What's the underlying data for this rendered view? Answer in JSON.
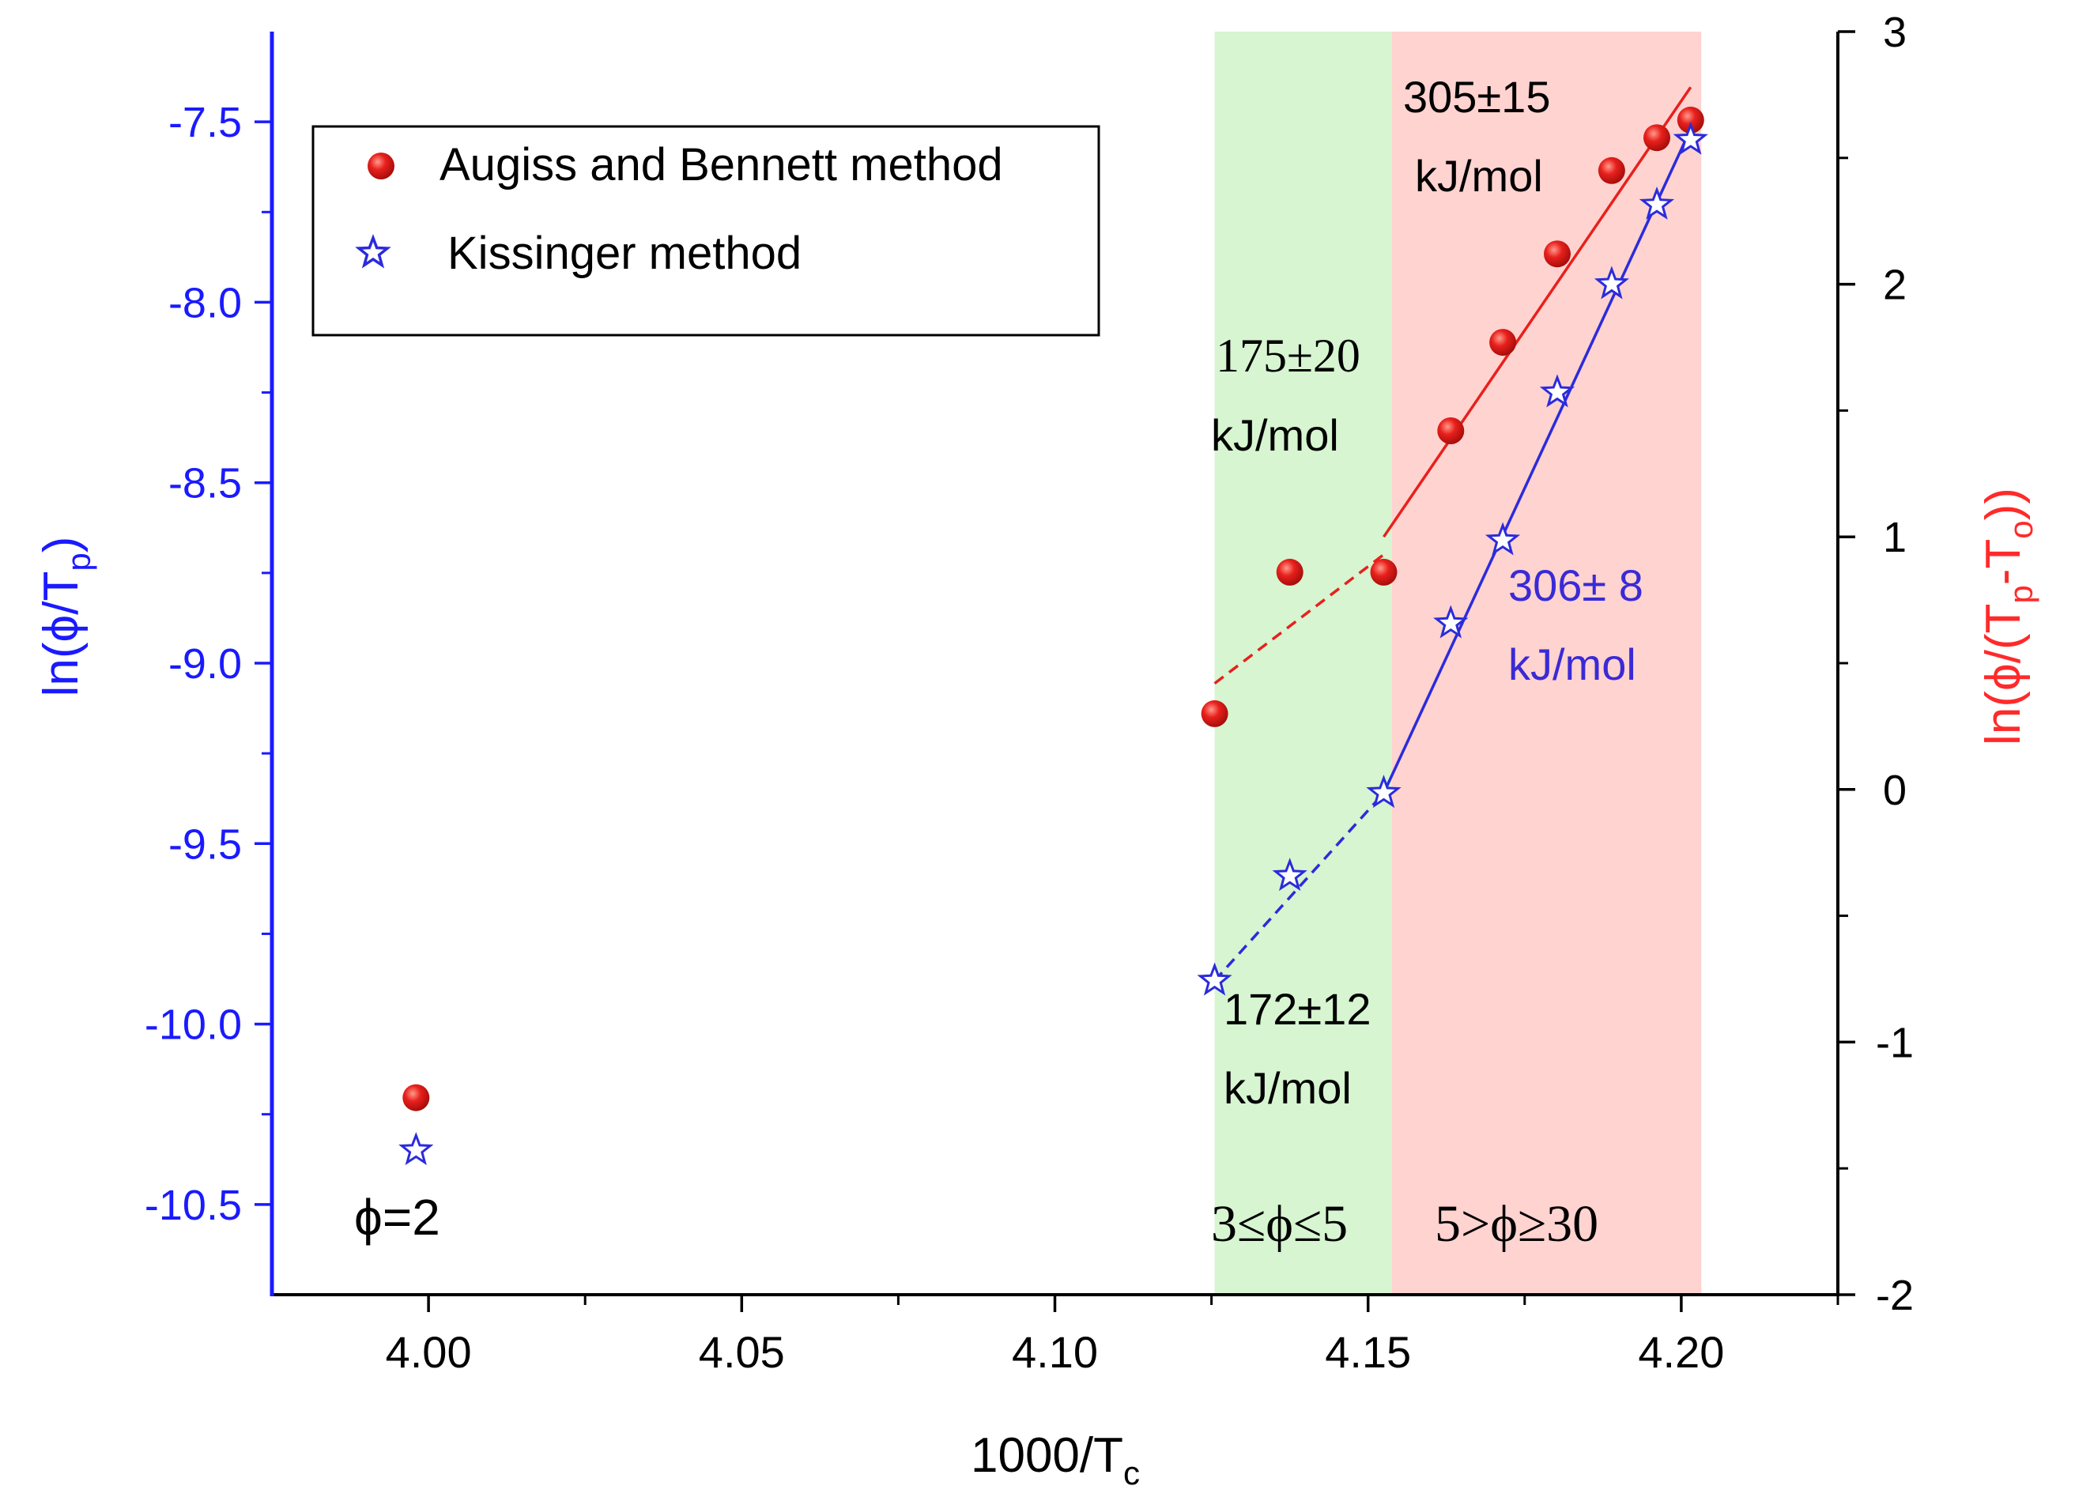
{
  "chart_data": {
    "type": "scatter",
    "xlabel": {
      "main": "1000/T",
      "sub": "c"
    },
    "ylabel_left": {
      "pre": "ln(ϕ/T",
      "sub": "p",
      "post": ")"
    },
    "ylabel_right": {
      "pre": "ln(ϕ/(T",
      "sub1": "p",
      "mid": "-T",
      "sub2": "o",
      "post": "))"
    },
    "xlim": [
      3.975,
      4.225
    ],
    "ylim_left": [
      -10.75,
      -7.25
    ],
    "ylim_right": [
      -2,
      3
    ],
    "x_ticks": [
      4.0,
      4.05,
      4.1,
      4.15,
      4.2
    ],
    "x_tick_labels": [
      "4.00",
      "4.05",
      "4.10",
      "4.15",
      "4.20"
    ],
    "y_left_ticks": [
      -10.5,
      -10.0,
      -9.5,
      -9.0,
      -8.5,
      -8.0,
      -7.5
    ],
    "y_left_tick_labels": [
      "-10.5",
      "-10.0",
      "-9.5",
      "-9.0",
      "-8.5",
      "-8.0",
      "-7.5"
    ],
    "y_right_ticks": [
      -2,
      -1,
      0,
      1,
      2,
      3
    ],
    "y_right_tick_labels": [
      "-2",
      "-1",
      "0",
      "1",
      "2",
      "3"
    ],
    "colors": {
      "left_axis": "#1a1aff",
      "right_axis": "#ff2a2a",
      "augiss": "#e8201c",
      "kissinger": "#2b2bdc",
      "green_band": "#d6f5d0",
      "red_band": "#ffd3d0"
    },
    "regions": [
      {
        "label": "3≤ϕ≤5",
        "x_from": 4.1255,
        "x_to": 4.1538,
        "color": "green"
      },
      {
        "label": "5>ϕ≥30",
        "x_from": 4.1538,
        "x_to": 4.2032,
        "color": "red"
      }
    ],
    "series": [
      {
        "name": "Augiss and Bennett method",
        "axis": "right",
        "marker": "circle",
        "x": [
          3.998,
          4.1255,
          4.1375,
          4.1525,
          4.1632,
          4.1715,
          4.1802,
          4.1889,
          4.1961,
          4.2015
        ],
        "y": [
          -1.22,
          0.3,
          0.86,
          0.86,
          1.42,
          1.77,
          2.12,
          2.45,
          2.58,
          2.65
        ]
      },
      {
        "name": "Kissinger method",
        "axis": "left",
        "marker": "star",
        "x": [
          3.998,
          4.1255,
          4.1375,
          4.1525,
          4.1632,
          4.1715,
          4.1802,
          4.1889,
          4.1961,
          4.2015
        ],
        "y": [
          -10.35,
          -9.88,
          -9.59,
          -9.36,
          -8.89,
          -8.66,
          -8.25,
          -7.95,
          -7.73,
          -7.55
        ]
      }
    ],
    "fit_lines": [
      {
        "series": "Augiss and Bennett method",
        "axis": "right",
        "style": "dashed",
        "x": [
          4.1255,
          4.1525
        ],
        "y": [
          0.42,
          0.93
        ]
      },
      {
        "series": "Augiss and Bennett method",
        "axis": "right",
        "style": "solid",
        "x": [
          4.1525,
          4.2015
        ],
        "y": [
          1.0,
          2.78
        ]
      },
      {
        "series": "Kissinger method",
        "axis": "left",
        "style": "dashed",
        "x": [
          4.1255,
          4.1525
        ],
        "y": [
          -9.88,
          -9.36
        ]
      },
      {
        "series": "Kissinger method",
        "axis": "left",
        "style": "solid",
        "x": [
          4.1525,
          4.2015
        ],
        "y": [
          -9.36,
          -7.52
        ]
      }
    ],
    "legend": {
      "position": "top-left",
      "entries": [
        "Augiss and Bennett method",
        "Kissinger method"
      ]
    },
    "annotations": [
      {
        "id": "ea-305",
        "lines": [
          "305±15",
          "kJ/mol"
        ],
        "color": "black",
        "near": "red fit, top"
      },
      {
        "id": "ea-175",
        "lines": [
          "175±20",
          "kJ/mol"
        ],
        "color": "black",
        "near": "green band, upper"
      },
      {
        "id": "ea-306",
        "lines": [
          "306± 8",
          "kJ/mol"
        ],
        "color": "blue",
        "near": "blue fit, middle"
      },
      {
        "id": "ea-172",
        "lines": [
          "172±12",
          "kJ/mol"
        ],
        "color": "black",
        "near": "green band, lower"
      },
      {
        "id": "phi2",
        "lines": [
          "ϕ=2"
        ],
        "color": "black",
        "near": "bottom-left"
      },
      {
        "id": "region-green",
        "lines": [
          "3≤ϕ≤5"
        ],
        "color": "black",
        "near": "green band, bottom"
      },
      {
        "id": "region-red",
        "lines": [
          "5>ϕ≥30"
        ],
        "color": "black",
        "near": "red band, bottom"
      }
    ]
  }
}
